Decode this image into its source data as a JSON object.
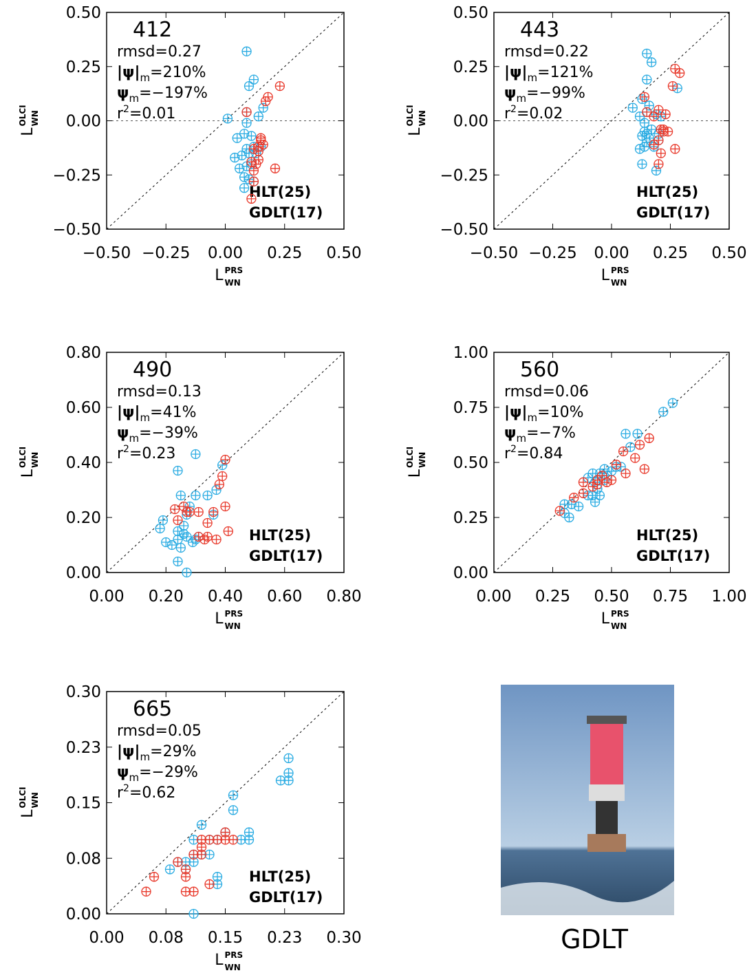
{
  "chart_data": [
    {
      "type": "scatter",
      "label": "412",
      "stats": [
        {
          "text": "rmsd=0.27"
        },
        {
          "text": "|ψ|",
          "sub": "m",
          "rest": "=210%"
        },
        {
          "text": "ψ",
          "sub": "m",
          "rest": "=−197%"
        },
        {
          "text": "r",
          "sup": "2",
          "rest": "=0.01"
        }
      ],
      "xlabel": {
        "text": "L",
        "sup": "PRS",
        "sub": "WN"
      },
      "ylabel": {
        "text": "L",
        "sup": "OLCI",
        "sub": "WN"
      },
      "xlim": [
        -0.5,
        0.5
      ],
      "ylim": [
        -0.5,
        0.5
      ],
      "xticks": [
        {
          "value": -0.5,
          "label": "−0.50"
        },
        {
          "value": -0.25,
          "label": "−0.25"
        },
        {
          "value": 0,
          "label": "0.00"
        },
        0.25,
        {
          "value": 0.5,
          "label": "0.50"
        }
      ],
      "yticks": [
        {
          "value": -0.5,
          "label": "−0.50"
        },
        {
          "value": -0.25,
          "label": "−0.25"
        },
        {
          "value": 0,
          "label": "0.00"
        },
        0.25,
        {
          "value": 0.5,
          "label": "0.50"
        }
      ],
      "series": [
        {
          "name": "HLT(25)",
          "color": "#29abe2",
          "x": [
            0.09,
            0.1,
            0.12,
            0.01,
            0.09,
            0.09,
            0.14,
            0.16,
            0.05,
            0.08,
            0.09,
            0.11,
            0.04,
            0.07,
            0.1,
            0.08,
            0.08,
            0.12,
            0.13,
            0.11,
            0.15,
            0.09,
            0.12,
            0.06,
            0.1
          ],
          "y": [
            0.32,
            0.16,
            0.19,
            0.01,
            0.04,
            -0.01,
            0.02,
            0.06,
            -0.08,
            -0.06,
            -0.13,
            -0.07,
            -0.17,
            -0.16,
            -0.15,
            -0.26,
            -0.31,
            -0.28,
            -0.15,
            -0.2,
            -0.12,
            -0.21,
            -0.12,
            -0.22,
            -0.27
          ]
        },
        {
          "name": "GDLT(17)",
          "color": "#e8382a",
          "x": [
            0.23,
            0.18,
            0.17,
            0.09,
            0.12,
            0.14,
            0.15,
            0.14,
            0.11,
            0.13,
            0.14,
            0.21,
            0.12,
            0.11,
            0.15,
            0.12,
            0.16
          ],
          "y": [
            0.16,
            0.11,
            0.09,
            0.04,
            -0.13,
            -0.12,
            -0.08,
            -0.18,
            -0.19,
            -0.2,
            -0.14,
            -0.22,
            -0.28,
            -0.36,
            -0.09,
            -0.23,
            -0.11
          ]
        }
      ]
    },
    {
      "type": "scatter",
      "label": "443",
      "stats": [
        {
          "text": "rmsd=0.22"
        },
        {
          "text": "|ψ|",
          "sub": "m",
          "rest": "=121%"
        },
        {
          "text": "ψ",
          "sub": "m",
          "rest": "=−99%"
        },
        {
          "text": "r",
          "sup": "2",
          "rest": "=0.02"
        }
      ],
      "xlabel": {
        "text": "L",
        "sup": "PRS",
        "sub": "WN"
      },
      "ylabel": {
        "text": "L",
        "sup": "OLCI",
        "sub": "WN"
      },
      "xlim": [
        -0.5,
        0.5
      ],
      "ylim": [
        -0.5,
        0.5
      ],
      "xticks": [
        {
          "value": -0.5,
          "label": "−0.50"
        },
        {
          "value": -0.25,
          "label": "−0.25"
        },
        {
          "value": 0,
          "label": "0.00"
        },
        0.25,
        {
          "value": 0.5,
          "label": "0.50"
        }
      ],
      "yticks": [
        {
          "value": -0.5,
          "label": "−0.50"
        },
        {
          "value": -0.25,
          "label": "−0.25"
        },
        {
          "value": 0,
          "label": "0.00"
        },
        0.25,
        {
          "value": 0.5,
          "label": "0.50"
        }
      ],
      "series": [
        {
          "name": "HLT(25)",
          "color": "#29abe2",
          "x": [
            0.15,
            0.17,
            0.15,
            0.09,
            0.13,
            0.16,
            0.15,
            0.12,
            0.19,
            0.14,
            0.13,
            0.15,
            0.14,
            0.16,
            0.12,
            0.14,
            0.13,
            0.18,
            0.2,
            0.19,
            0.28,
            0.2,
            0.17,
            0.15,
            0.21
          ],
          "y": [
            0.31,
            0.27,
            0.19,
            0.06,
            0.1,
            0.07,
            0.04,
            0.02,
            0.03,
            -0.01,
            -0.07,
            -0.06,
            -0.05,
            -0.08,
            -0.13,
            -0.12,
            -0.2,
            -0.12,
            -0.09,
            -0.23,
            0.15,
            -0.06,
            -0.04,
            -0.1,
            0.02
          ]
        },
        {
          "name": "GDLT(17)",
          "color": "#e8382a",
          "x": [
            0.27,
            0.29,
            0.26,
            0.14,
            0.2,
            0.18,
            0.23,
            0.21,
            0.22,
            0.24,
            0.2,
            0.21,
            0.27,
            0.2,
            0.18,
            0.15,
            0.22
          ],
          "y": [
            0.24,
            0.22,
            0.16,
            0.11,
            0.05,
            0.02,
            0.03,
            -0.04,
            -0.04,
            -0.05,
            -0.09,
            -0.15,
            -0.13,
            -0.2,
            -0.11,
            0.04,
            -0.05
          ]
        }
      ]
    },
    {
      "type": "scatter",
      "label": "490",
      "stats": [
        {
          "text": "rmsd=0.13"
        },
        {
          "text": "|ψ|",
          "sub": "m",
          "rest": "=41%"
        },
        {
          "text": "ψ",
          "sub": "m",
          "rest": "=−39%"
        },
        {
          "text": "r",
          "sup": "2",
          "rest": "=0.23"
        }
      ],
      "xlabel": {
        "text": "L",
        "sup": "PRS",
        "sub": "WN"
      },
      "ylabel": {
        "text": "L",
        "sup": "OLCI",
        "sub": "WN"
      },
      "xlim": [
        0,
        0.8
      ],
      "ylim": [
        0,
        0.8
      ],
      "xticks": [
        {
          "value": 0,
          "label": "0.00"
        },
        {
          "value": 0.2,
          "label": "0.20"
        },
        {
          "value": 0.4,
          "label": "0.40"
        },
        {
          "value": 0.6,
          "label": "0.60"
        },
        {
          "value": 0.8,
          "label": "0.80"
        }
      ],
      "yticks": [
        {
          "value": 0,
          "label": "0.00"
        },
        {
          "value": 0.2,
          "label": "0.20"
        },
        {
          "value": 0.4,
          "label": "0.40"
        },
        {
          "value": 0.6,
          "label": "0.60"
        },
        {
          "value": 0.8,
          "label": "0.80"
        }
      ],
      "series": [
        {
          "name": "HLT(25)",
          "color": "#29abe2",
          "x": [
            0.3,
            0.24,
            0.25,
            0.3,
            0.34,
            0.37,
            0.39,
            0.28,
            0.27,
            0.18,
            0.19,
            0.24,
            0.26,
            0.24,
            0.2,
            0.22,
            0.25,
            0.27,
            0.3,
            0.24,
            0.27,
            0.29,
            0.31,
            0.26,
            0.36
          ],
          "y": [
            0.43,
            0.37,
            0.28,
            0.28,
            0.28,
            0.3,
            0.39,
            0.24,
            0.21,
            0.16,
            0.19,
            0.15,
            0.14,
            0.12,
            0.11,
            0.1,
            0.09,
            0.13,
            0.12,
            0.04,
            0.0,
            0.11,
            0.13,
            0.17,
            0.21
          ]
        },
        {
          "name": "GDLT(17)",
          "color": "#e8382a",
          "x": [
            0.4,
            0.39,
            0.38,
            0.4,
            0.36,
            0.34,
            0.31,
            0.27,
            0.26,
            0.23,
            0.24,
            0.31,
            0.34,
            0.33,
            0.37,
            0.41,
            0.28
          ],
          "y": [
            0.41,
            0.35,
            0.32,
            0.24,
            0.22,
            0.18,
            0.22,
            0.22,
            0.24,
            0.23,
            0.19,
            0.13,
            0.13,
            0.12,
            0.12,
            0.15,
            0.22
          ]
        }
      ]
    },
    {
      "type": "scatter",
      "label": "560",
      "stats": [
        {
          "text": "rmsd=0.06"
        },
        {
          "text": "|ψ|",
          "sub": "m",
          "rest": "=10%"
        },
        {
          "text": "ψ",
          "sub": "m",
          "rest": "=−7%"
        },
        {
          "text": "r",
          "sup": "2",
          "rest": "=0.84"
        }
      ],
      "xlabel": {
        "text": "L",
        "sup": "PRS",
        "sub": "WN"
      },
      "ylabel": {
        "text": "L",
        "sup": "OLCI",
        "sub": "WN"
      },
      "xlim": [
        0,
        1
      ],
      "ylim": [
        0,
        1
      ],
      "xticks": [
        {
          "value": 0,
          "label": "0.00"
        },
        0.25,
        {
          "value": 0.5,
          "label": "0.50"
        },
        0.75,
        {
          "value": 1,
          "label": "1.00"
        }
      ],
      "yticks": [
        {
          "value": 0,
          "label": "0.00"
        },
        0.25,
        {
          "value": 0.5,
          "label": "0.50"
        },
        0.75,
        {
          "value": 1,
          "label": "1.00"
        }
      ],
      "series": [
        {
          "name": "HLT(25)",
          "color": "#29abe2",
          "x": [
            0.76,
            0.72,
            0.56,
            0.61,
            0.58,
            0.52,
            0.5,
            0.47,
            0.45,
            0.42,
            0.4,
            0.43,
            0.47,
            0.45,
            0.42,
            0.43,
            0.33,
            0.3,
            0.3,
            0.32,
            0.36,
            0.54,
            0.44,
            0.4,
            0.48
          ],
          "y": [
            0.77,
            0.73,
            0.63,
            0.63,
            0.57,
            0.48,
            0.46,
            0.47,
            0.45,
            0.45,
            0.43,
            0.41,
            0.42,
            0.35,
            0.35,
            0.32,
            0.31,
            0.31,
            0.27,
            0.25,
            0.3,
            0.48,
            0.38,
            0.35,
            0.44
          ]
        },
        {
          "name": "GDLT(17)",
          "color": "#e8382a",
          "x": [
            0.66,
            0.62,
            0.6,
            0.64,
            0.56,
            0.52,
            0.5,
            0.44,
            0.42,
            0.38,
            0.38,
            0.34,
            0.28,
            0.55,
            0.46,
            0.44,
            0.48
          ],
          "y": [
            0.61,
            0.58,
            0.52,
            0.47,
            0.45,
            0.49,
            0.42,
            0.42,
            0.39,
            0.41,
            0.36,
            0.34,
            0.28,
            0.55,
            0.44,
            0.4,
            0.41
          ]
        }
      ]
    },
    {
      "type": "scatter",
      "label": "665",
      "stats": [
        {
          "text": "rmsd=0.05"
        },
        {
          "text": "|ψ|",
          "sub": "m",
          "rest": "=29%"
        },
        {
          "text": "ψ",
          "sub": "m",
          "rest": "=−29%"
        },
        {
          "text": "r",
          "sup": "2",
          "rest": "=0.62"
        }
      ],
      "xlabel": {
        "text": "L",
        "sup": "PRS",
        "sub": "WN"
      },
      "ylabel": {
        "text": "L",
        "sup": "OLCI",
        "sub": "WN"
      },
      "xlim": [
        0,
        0.3
      ],
      "ylim": [
        0,
        0.3
      ],
      "xticks": [
        {
          "value": 0,
          "label": "0.00"
        },
        {
          "value": 0.075,
          "label": "0.08"
        },
        0.15,
        {
          "value": 0.225,
          "label": "0.23"
        },
        {
          "value": 0.3,
          "label": "0.30"
        }
      ],
      "yticks": [
        {
          "value": 0,
          "label": "0.00"
        },
        {
          "value": 0.075,
          "label": "0.08"
        },
        0.15,
        {
          "value": 0.225,
          "label": "0.23"
        },
        {
          "value": 0.3,
          "label": "0.30"
        }
      ],
      "series": [
        {
          "name": "HLT(25)",
          "color": "#29abe2",
          "x": [
            0.23,
            0.23,
            0.23,
            0.22,
            0.16,
            0.16,
            0.18,
            0.18,
            0.15,
            0.17,
            0.12,
            0.13,
            0.14,
            0.11,
            0.11,
            0.1,
            0.12,
            0.09,
            0.08,
            0.13,
            0.11,
            0.1,
            0.14,
            0.14,
            0.11
          ],
          "y": [
            0.21,
            0.19,
            0.18,
            0.18,
            0.16,
            0.14,
            0.11,
            0.1,
            0.11,
            0.1,
            0.12,
            0.1,
            0.1,
            0.1,
            0.08,
            0.07,
            0.08,
            0.07,
            0.06,
            0.08,
            0.07,
            0.06,
            0.05,
            0.04,
            0.0
          ]
        },
        {
          "name": "GDLT(17)",
          "color": "#e8382a",
          "x": [
            0.15,
            0.15,
            0.13,
            0.12,
            0.12,
            0.11,
            0.09,
            0.1,
            0.1,
            0.06,
            0.05,
            0.1,
            0.11,
            0.13,
            0.12,
            0.16,
            0.14
          ],
          "y": [
            0.11,
            0.1,
            0.1,
            0.09,
            0.08,
            0.08,
            0.07,
            0.06,
            0.05,
            0.05,
            0.03,
            0.03,
            0.03,
            0.04,
            0.1,
            0.1,
            0.1
          ]
        }
      ]
    }
  ],
  "photo": {
    "caption": "GDLT"
  }
}
